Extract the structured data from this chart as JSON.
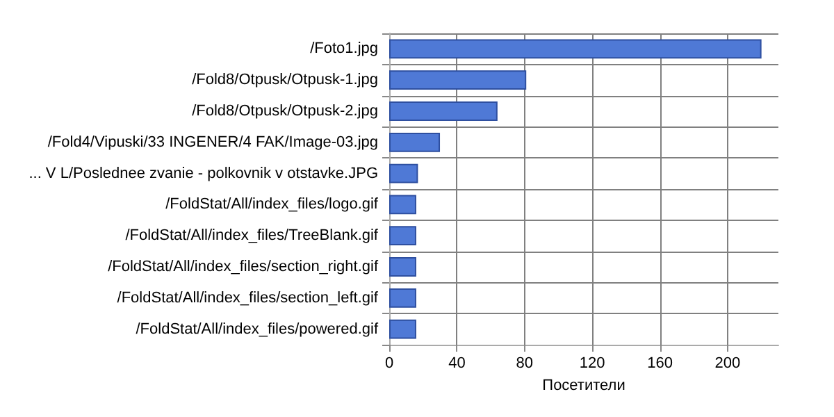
{
  "chart_data": {
    "type": "bar",
    "orientation": "horizontal",
    "xlabel": "Посетители",
    "categories": [
      "/Foto1.jpg",
      "/Fold8/Otpusk/Otpusk-1.jpg",
      "/Fold8/Otpusk/Otpusk-2.jpg",
      "/Fold4/Vipuski/33 INGENER/4 FAK/Image-03.jpg",
      "... V L/Poslednee zvanie - polkovnik v otstavke.JPG",
      "/FoldStat/All/index_files/logo.gif",
      "/FoldStat/All/index_files/TreeBlank.gif",
      "/FoldStat/All/index_files/section_right.gif",
      "/FoldStat/All/index_files/section_left.gif",
      "/FoldStat/All/index_files/powered.gif"
    ],
    "values": [
      220,
      81,
      64,
      30,
      17,
      16,
      16,
      16,
      16,
      16
    ],
    "color": "#4f79d6",
    "xlim": [
      0,
      230
    ],
    "xticks": [
      0,
      40,
      80,
      120,
      160,
      200
    ],
    "grid": true
  }
}
